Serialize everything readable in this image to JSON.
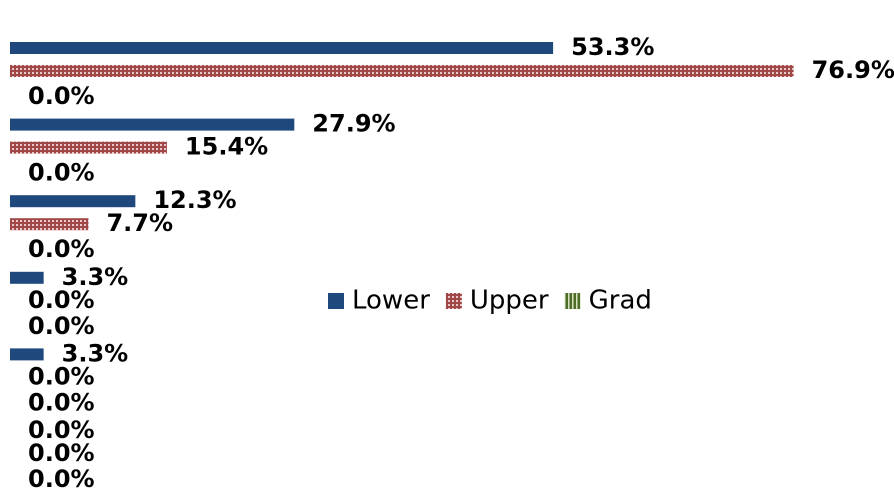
{
  "chart_data": {
    "type": "bar",
    "orientation": "horizontal",
    "categories": [
      null,
      null,
      null,
      null,
      null,
      null
    ],
    "series": [
      {
        "name": "Lower",
        "color": "#1f497d",
        "values": [
          53.3,
          27.9,
          12.3,
          3.3,
          3.3,
          0.0
        ],
        "value_labels": [
          "53.3%",
          "27.9%",
          "12.3%",
          "3.3%",
          "3.3%",
          "0.0%"
        ]
      },
      {
        "name": "Upper",
        "color": "#a04848",
        "values": [
          76.9,
          15.4,
          7.7,
          0.0,
          0.0,
          0.0
        ],
        "value_labels": [
          "76.9%",
          "15.4%",
          "7.7%",
          "0.0%",
          "0.0%",
          "0.0%"
        ]
      },
      {
        "name": "Grad",
        "color": "#4f6b28",
        "values": [
          0.0,
          0.0,
          0.0,
          0.0,
          0.0,
          0.0
        ],
        "value_labels": [
          "0.0%",
          "0.0%",
          "0.0%",
          "0.0%",
          "0.0%",
          "0.0%"
        ]
      }
    ],
    "legend": "center"
  }
}
